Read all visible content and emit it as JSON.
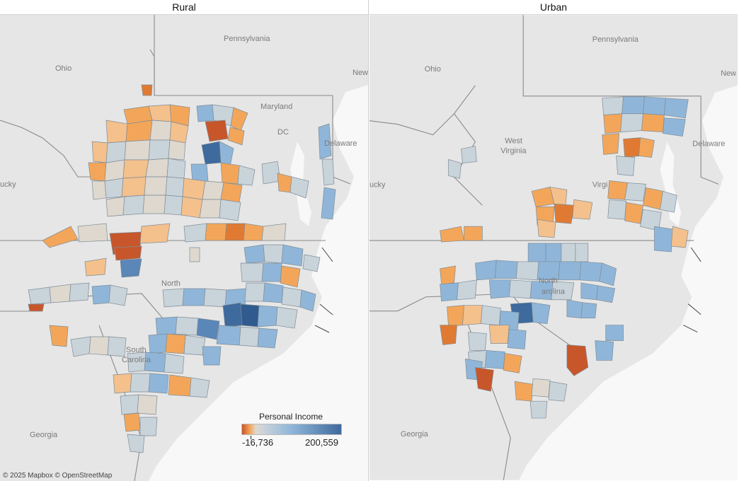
{
  "panels": {
    "left": {
      "title": "Rural",
      "places": [
        "Ohio",
        "Pennsylvania",
        "Maryland",
        "DC",
        "Delaware",
        "North",
        "South",
        "Carolina",
        "Georgia"
      ],
      "partial_labels": [
        "ucky",
        "New"
      ]
    },
    "right": {
      "title": "Urban",
      "places": [
        "Ohio",
        "Pennsylvania",
        "West",
        "Virginia",
        "Virgi",
        "Delaware",
        "North",
        "arolina",
        "Georgia"
      ],
      "partial_labels": [
        "ucky",
        "New"
      ]
    }
  },
  "legend": {
    "title": "Personal Income",
    "min_label": "-16,736",
    "max_label": "200,559",
    "min_value": -16736,
    "max_value": 200559,
    "colors": [
      "#c8562b",
      "#f3a65a",
      "#ded8cf",
      "#c9d3da",
      "#8fb6d9",
      "#3e6a9d"
    ]
  },
  "attribution": "© 2025 Mapbox © OpenStreetMap",
  "colors": {
    "basemap_land": "#e6e6e6",
    "basemap_water": "#f8f8f8",
    "state_border": "#8a8a8a",
    "county_border": "#7f8c96"
  }
}
